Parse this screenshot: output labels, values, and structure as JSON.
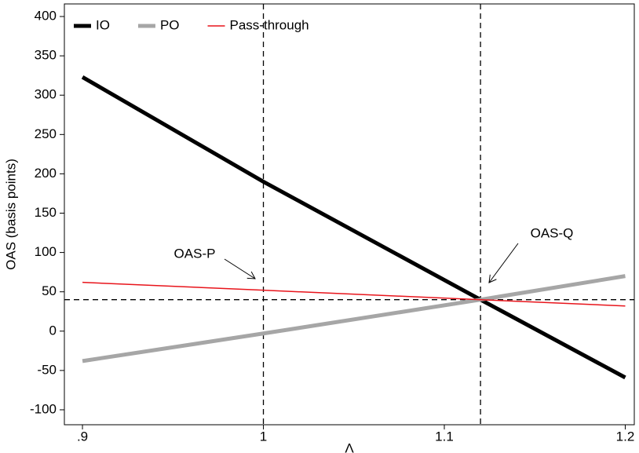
{
  "chart_data": {
    "type": "line",
    "x_label": "Λ",
    "y_label": "OAS (basis points)",
    "x": [
      0.9,
      1,
      1.12,
      1.2
    ],
    "series": [
      {
        "name": "IO",
        "color": "#000000",
        "line_width": 5,
        "values": [
          323,
          190,
          40,
          -59
        ]
      },
      {
        "name": "PO",
        "color": "#a6a6a6",
        "line_width": 5,
        "values": [
          -38,
          -3,
          40,
          70
        ]
      },
      {
        "name": "Pass-through",
        "color": "#e8141b",
        "line_width": 1.5,
        "values": [
          62,
          52,
          40,
          32
        ]
      }
    ],
    "xlim": [
      0.89,
      1.205
    ],
    "xticks": [
      {
        "value": 0.9,
        "label": ".9"
      },
      1,
      1.1,
      1.2
    ],
    "ylim": [
      -119,
      416
    ],
    "yticks": [
      -100,
      -50,
      0,
      50,
      100,
      150,
      200,
      250,
      300,
      350,
      400
    ],
    "reference_lines": {
      "x": [
        1,
        1.12
      ],
      "y": [
        40
      ]
    },
    "annotations": [
      "OAS-P",
      "OAS-Q"
    ],
    "legend": "upper left",
    "grid": false
  }
}
